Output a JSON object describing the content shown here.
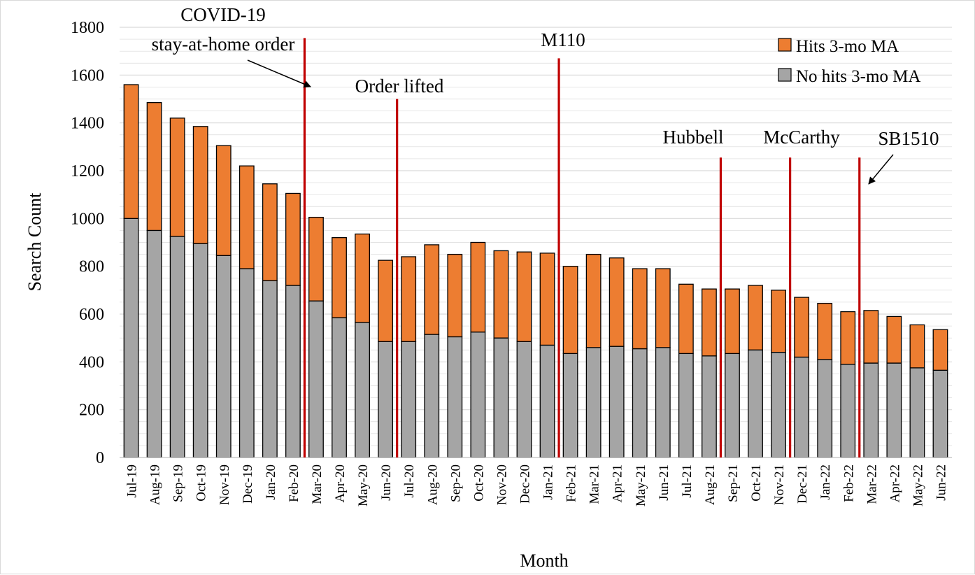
{
  "colors": {
    "hits": "#ed7d31",
    "no_hits": "#a5a5a5",
    "event_line": "#c00000",
    "gridline": "#d9d9d9",
    "bar_outline": "#000000"
  },
  "chart_data": {
    "type": "bar",
    "stacked": true,
    "title": "",
    "xlabel": "Month",
    "ylabel": "Search Count",
    "ylim": [
      0,
      1800
    ],
    "yticks": [
      0,
      200,
      400,
      600,
      800,
      1000,
      1200,
      1400,
      1600,
      1800
    ],
    "grid": "horizontal",
    "legend_position": "top-right",
    "categories": [
      "Jul-19",
      "Aug-19",
      "Sep-19",
      "Oct-19",
      "Nov-19",
      "Dec-19",
      "Jan-20",
      "Feb-20",
      "Mar-20",
      "Apr-20",
      "May-20",
      "Jun-20",
      "Jul-20",
      "Aug-20",
      "Sep-20",
      "Oct-20",
      "Nov-20",
      "Dec-20",
      "Jan-21",
      "Feb-21",
      "Mar-21",
      "Apr-21",
      "May-21",
      "Jun-21",
      "Jul-21",
      "Aug-21",
      "Sep-21",
      "Oct-21",
      "Nov-21",
      "Dec-21",
      "Jan-22",
      "Feb-22",
      "Mar-22",
      "Apr-22",
      "May-22",
      "Jun-22"
    ],
    "series": [
      {
        "name": "No hits 3-mo MA",
        "color_key": "no_hits",
        "values": [
          1000,
          950,
          925,
          895,
          845,
          790,
          740,
          720,
          655,
          585,
          565,
          485,
          485,
          515,
          505,
          525,
          500,
          485,
          470,
          435,
          460,
          465,
          455,
          460,
          435,
          425,
          435,
          450,
          440,
          420,
          410,
          390,
          395,
          395,
          375,
          365
        ]
      },
      {
        "name": "Hits 3-mo MA",
        "color_key": "hits",
        "values": [
          560,
          535,
          495,
          490,
          460,
          430,
          405,
          385,
          350,
          335,
          370,
          340,
          355,
          375,
          345,
          375,
          365,
          375,
          385,
          365,
          390,
          370,
          335,
          330,
          290,
          280,
          270,
          270,
          260,
          250,
          235,
          220,
          220,
          195,
          180,
          170
        ]
      }
    ],
    "legend": [
      {
        "label": "Hits 3-mo MA",
        "color_key": "hits"
      },
      {
        "label": "No hits 3-mo MA",
        "color_key": "no_hits"
      }
    ],
    "events": [
      {
        "id": "covid",
        "after_category": "Feb-20",
        "line_top": 1755,
        "label_lines": [
          "COVID-19",
          "stay-at-home order"
        ],
        "arrow": true
      },
      {
        "id": "lifted",
        "after_category": "Jun-20",
        "line_top": 1500,
        "label_lines": [
          "Order lifted"
        ],
        "arrow": false
      },
      {
        "id": "m110",
        "after_category": "Jan-21",
        "line_top": 1670,
        "label_lines": [
          "M110"
        ],
        "arrow": false
      },
      {
        "id": "hubbell",
        "after_category": "Aug-21",
        "line_top": 1255,
        "label_lines": [
          "Hubbell"
        ],
        "arrow": false
      },
      {
        "id": "mccarthy",
        "after_category": "Nov-21",
        "line_top": 1255,
        "label_lines": [
          "McCarthy"
        ],
        "arrow": false
      },
      {
        "id": "sb1510",
        "after_category": "Feb-22",
        "line_top": 1255,
        "label_lines": [
          "SB1510"
        ],
        "arrow": true
      }
    ]
  }
}
